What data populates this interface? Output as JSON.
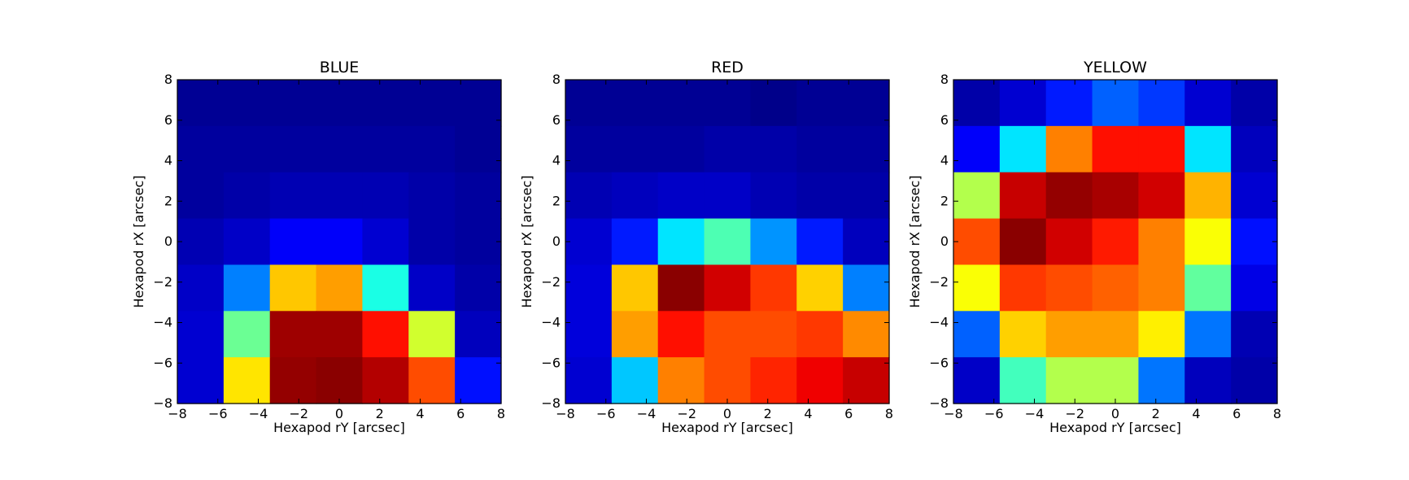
{
  "chart_data": [
    {
      "type": "heatmap",
      "title": "BLUE",
      "xlabel": "Hexapod rY [arcsec]",
      "ylabel": "Hexapod rX [arcsec]",
      "xlim": [
        -8,
        8
      ],
      "ylim": [
        -8,
        8
      ],
      "xticks": [
        "−8",
        "−6",
        "−4",
        "−2",
        "0",
        "2",
        "4",
        "6",
        "8"
      ],
      "yticks": [
        "8",
        "6",
        "4",
        "2",
        "0",
        "−2",
        "−4",
        "−6",
        "−8"
      ],
      "grid": false,
      "colormap": "jet",
      "cells_note": "rows listed from top (rX≈+8) to bottom (rX≈−8); columns from rY≈−8 to +8; values normalized 0–1",
      "rows": [
        [
          0.02,
          0.02,
          0.02,
          0.02,
          0.02,
          0.02,
          0.02
        ],
        [
          0.03,
          0.03,
          0.03,
          0.03,
          0.03,
          0.03,
          0.02
        ],
        [
          0.03,
          0.04,
          0.05,
          0.05,
          0.05,
          0.04,
          0.03
        ],
        [
          0.05,
          0.07,
          0.12,
          0.12,
          0.08,
          0.04,
          0.03
        ],
        [
          0.07,
          0.25,
          0.68,
          0.72,
          0.4,
          0.07,
          0.04
        ],
        [
          0.08,
          0.48,
          0.97,
          0.97,
          0.86,
          0.58,
          0.06
        ],
        [
          0.08,
          0.65,
          0.98,
          0.99,
          0.95,
          0.8,
          0.14
        ]
      ]
    },
    {
      "type": "heatmap",
      "title": "RED",
      "xlabel": "Hexapod rY [arcsec]",
      "ylabel": "Hexapod rX [arcsec]",
      "xlim": [
        -8,
        8
      ],
      "ylim": [
        -8,
        8
      ],
      "xticks": [
        "−8",
        "−6",
        "−4",
        "−2",
        "0",
        "2",
        "4",
        "6",
        "8"
      ],
      "yticks": [
        "8",
        "6",
        "4",
        "2",
        "0",
        "−2",
        "−4",
        "−6",
        "−8"
      ],
      "grid": false,
      "colormap": "jet",
      "rows": [
        [
          0.02,
          0.02,
          0.02,
          0.02,
          0.01,
          0.02,
          0.02
        ],
        [
          0.03,
          0.03,
          0.03,
          0.04,
          0.04,
          0.03,
          0.03
        ],
        [
          0.05,
          0.06,
          0.07,
          0.07,
          0.05,
          0.04,
          0.04
        ],
        [
          0.08,
          0.15,
          0.35,
          0.45,
          0.27,
          0.15,
          0.06
        ],
        [
          0.09,
          0.68,
          0.99,
          0.92,
          0.82,
          0.67,
          0.25
        ],
        [
          0.09,
          0.72,
          0.86,
          0.8,
          0.8,
          0.82,
          0.74
        ],
        [
          0.08,
          0.32,
          0.75,
          0.8,
          0.84,
          0.89,
          0.93
        ]
      ]
    },
    {
      "type": "heatmap",
      "title": "YELLOW",
      "xlabel": "Hexapod rY [arcsec]",
      "ylabel": "Hexapod rX [arcsec]",
      "xlim": [
        -8,
        8
      ],
      "ylim": [
        -8,
        8
      ],
      "xticks": [
        "−8",
        "−6",
        "−4",
        "−2",
        "0",
        "2",
        "4",
        "6",
        "8"
      ],
      "yticks": [
        "8",
        "6",
        "4",
        "2",
        "0",
        "−2",
        "−4",
        "−6",
        "−8"
      ],
      "grid": false,
      "colormap": "jet",
      "rows": [
        [
          0.04,
          0.08,
          0.15,
          0.22,
          0.18,
          0.08,
          0.04
        ],
        [
          0.12,
          0.35,
          0.75,
          0.86,
          0.86,
          0.35,
          0.06
        ],
        [
          0.55,
          0.93,
          0.98,
          0.96,
          0.92,
          0.7,
          0.08
        ],
        [
          0.8,
          0.99,
          0.92,
          0.85,
          0.75,
          0.62,
          0.14
        ],
        [
          0.62,
          0.82,
          0.8,
          0.78,
          0.75,
          0.47,
          0.1
        ],
        [
          0.22,
          0.67,
          0.72,
          0.72,
          0.64,
          0.24,
          0.05
        ],
        [
          0.07,
          0.44,
          0.55,
          0.55,
          0.24,
          0.06,
          0.04
        ]
      ]
    }
  ]
}
